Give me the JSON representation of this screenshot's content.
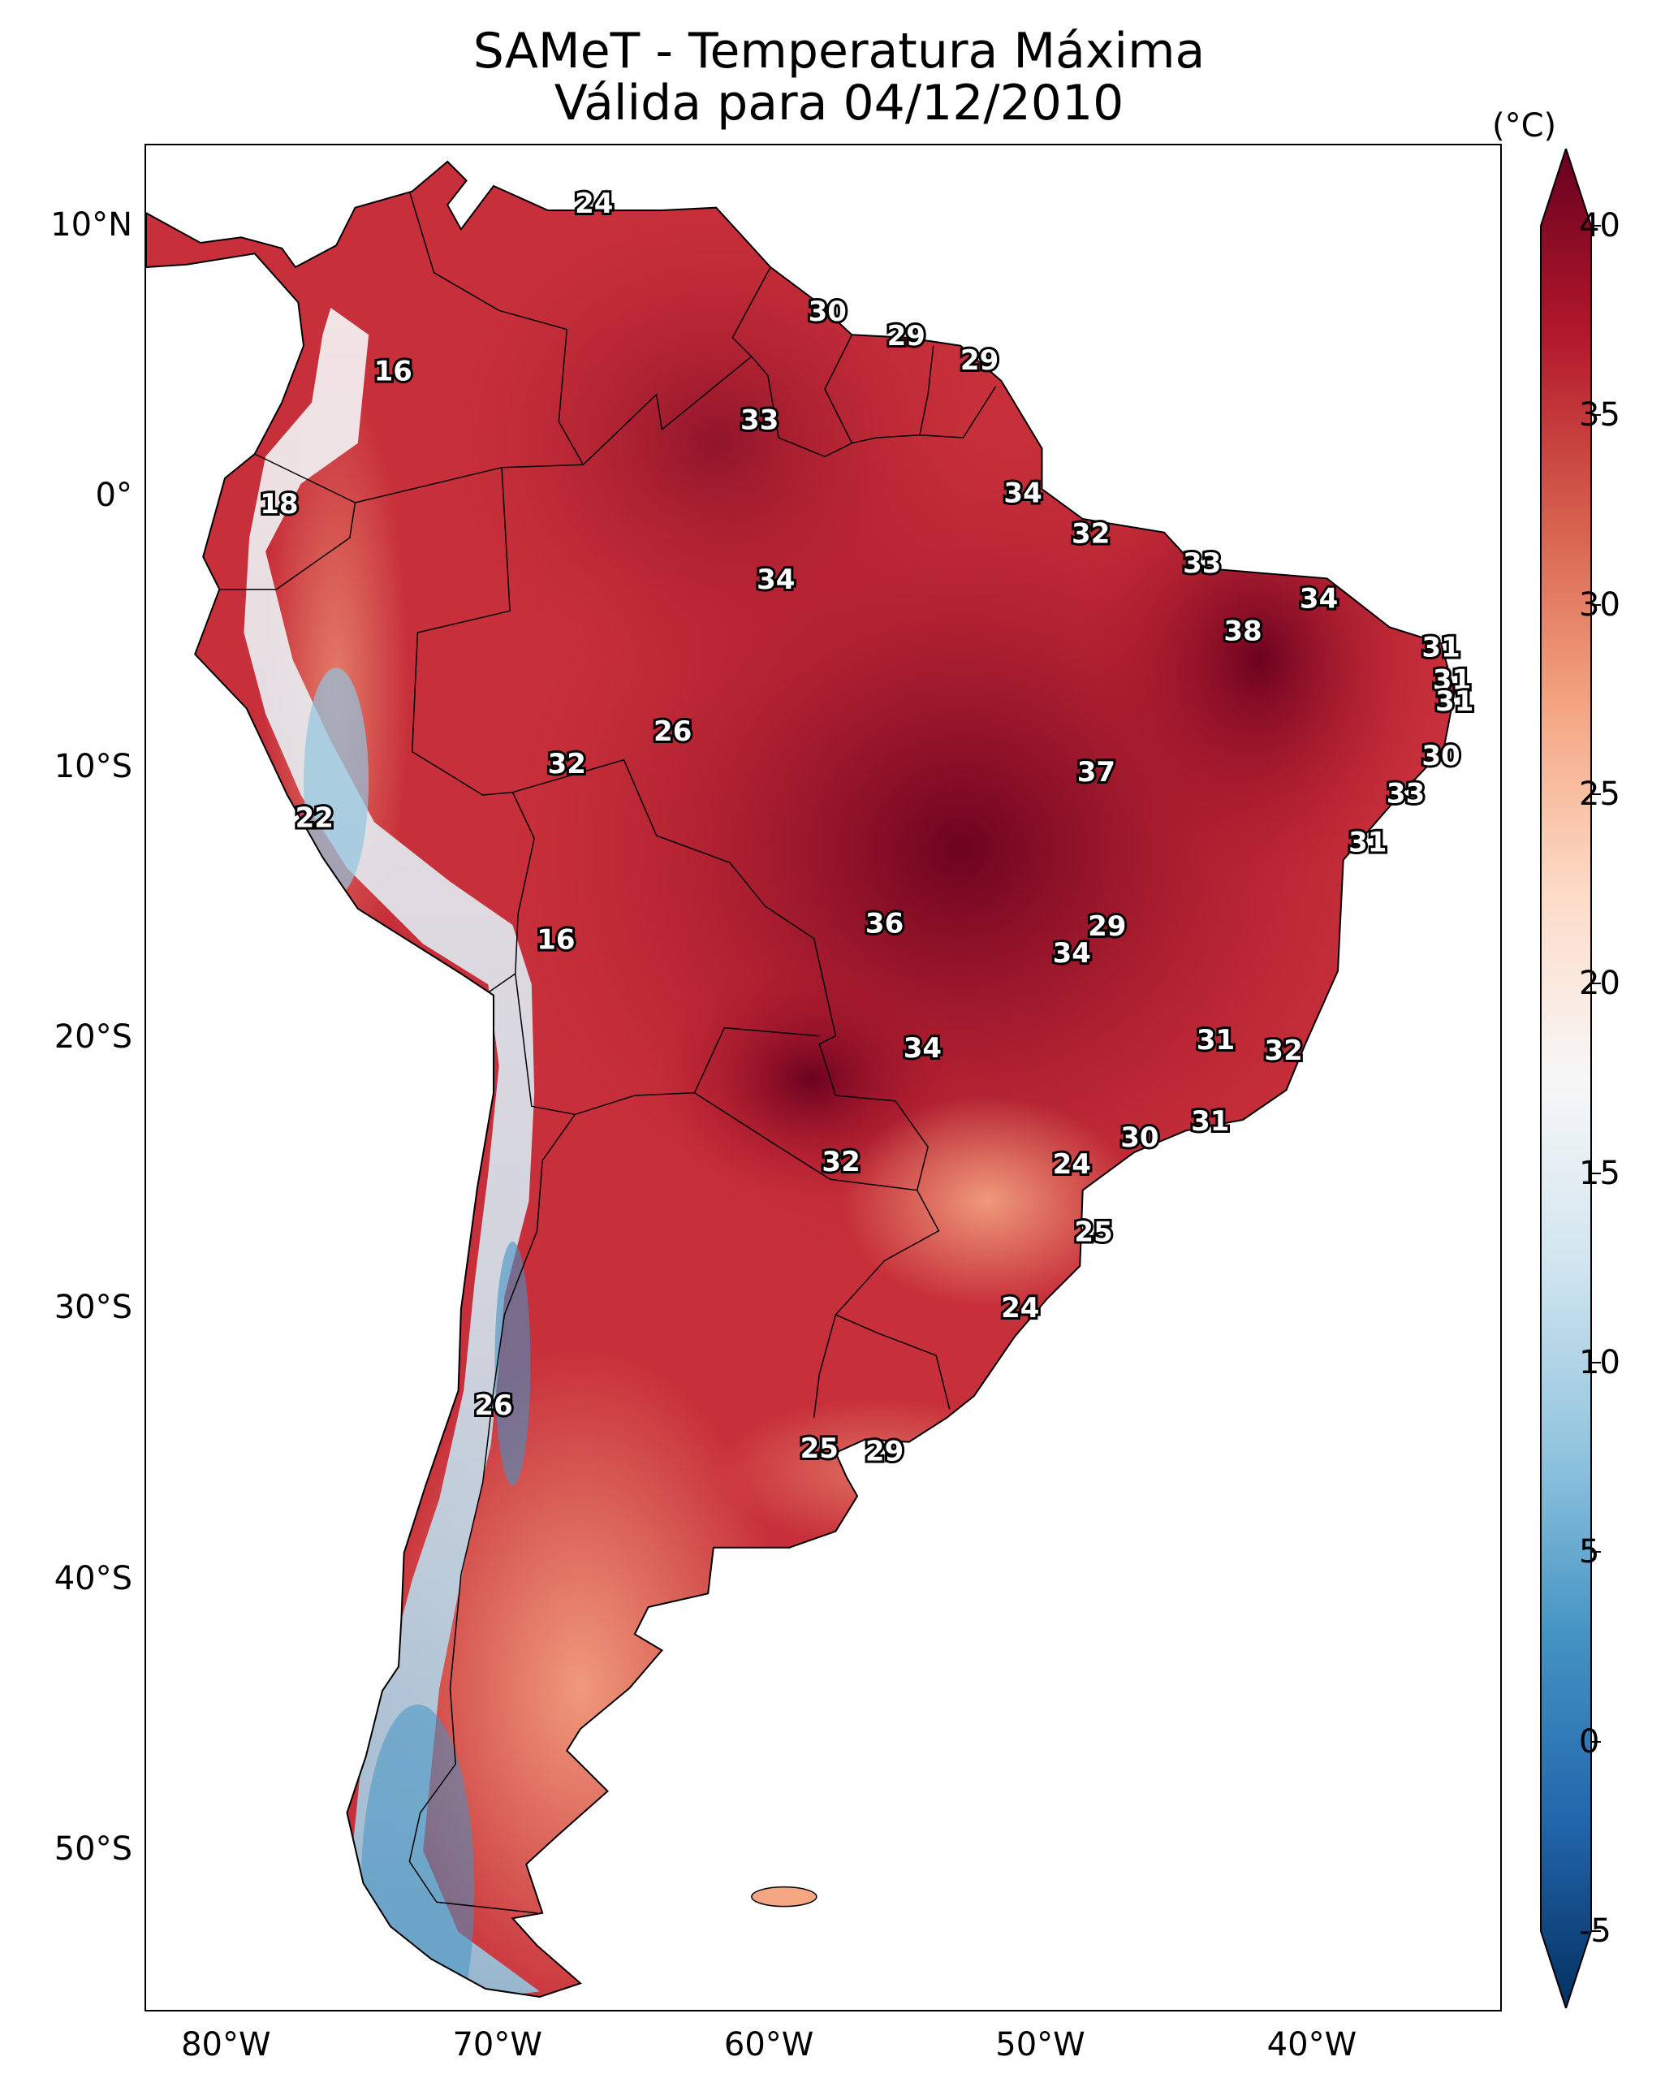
{
  "title": {
    "line1": "SAMeT - Temperatura Máxima",
    "line2": "Válida para 04/12/2010"
  },
  "map": {
    "lon_range": [
      -83,
      -33
    ],
    "lat_range": [
      -56,
      13
    ],
    "lat_ticks": [
      "10°N",
      "0°",
      "10°S",
      "20°S",
      "30°S",
      "40°S",
      "50°S"
    ],
    "lat_values": [
      10,
      0,
      -10,
      -20,
      -30,
      -40,
      -50
    ],
    "lon_ticks": [
      "80°W",
      "70°W",
      "60°W",
      "50°W",
      "40°W"
    ],
    "lon_values": [
      -80,
      -70,
      -60,
      -50,
      -40
    ]
  },
  "colorbar": {
    "unit": "(°C)",
    "ticks": [
      "40",
      "35",
      "30",
      "25",
      "20",
      "15",
      "10",
      "5",
      "0",
      "-5"
    ],
    "tick_values": [
      40,
      35,
      30,
      25,
      20,
      15,
      10,
      5,
      0,
      -5
    ],
    "range": [
      -5,
      40
    ],
    "colors": [
      "#053061",
      "#2166ac",
      "#4393c3",
      "#92c5de",
      "#d1e5f0",
      "#f7f7f7",
      "#fddbc7",
      "#f4a582",
      "#d6604d",
      "#b2182b",
      "#67001f"
    ]
  },
  "point_labels": [
    {
      "text": "24",
      "lon": -66.5,
      "lat": 10.8
    },
    {
      "text": "30",
      "lon": -57.9,
      "lat": 6.8
    },
    {
      "text": "29",
      "lon": -55.0,
      "lat": 5.9
    },
    {
      "text": "29",
      "lon": -52.3,
      "lat": 5.0
    },
    {
      "text": "16",
      "lon": -73.9,
      "lat": 4.6
    },
    {
      "text": "33",
      "lon": -60.4,
      "lat": 2.8
    },
    {
      "text": "34",
      "lon": -50.7,
      "lat": 0.1
    },
    {
      "text": "18",
      "lon": -78.1,
      "lat": -0.3
    },
    {
      "text": "32",
      "lon": -48.2,
      "lat": -1.4
    },
    {
      "text": "33",
      "lon": -44.1,
      "lat": -2.5
    },
    {
      "text": "34",
      "lon": -59.8,
      "lat": -3.1
    },
    {
      "text": "34",
      "lon": -39.8,
      "lat": -3.8
    },
    {
      "text": "38",
      "lon": -42.6,
      "lat": -5.0
    },
    {
      "text": "31",
      "lon": -35.3,
      "lat": -5.6
    },
    {
      "text": "31",
      "lon": -34.9,
      "lat": -6.8
    },
    {
      "text": "31",
      "lon": -34.8,
      "lat": -7.6
    },
    {
      "text": "26",
      "lon": -63.6,
      "lat": -8.7
    },
    {
      "text": "30",
      "lon": -35.3,
      "lat": -9.6
    },
    {
      "text": "32",
      "lon": -67.5,
      "lat": -9.9
    },
    {
      "text": "37",
      "lon": -48.0,
      "lat": -10.2
    },
    {
      "text": "33",
      "lon": -36.6,
      "lat": -11.0
    },
    {
      "text": "22",
      "lon": -76.8,
      "lat": -11.9
    },
    {
      "text": "31",
      "lon": -38.0,
      "lat": -12.8
    },
    {
      "text": "36",
      "lon": -55.8,
      "lat": -15.8
    },
    {
      "text": "29",
      "lon": -47.6,
      "lat": -15.9
    },
    {
      "text": "16",
      "lon": -67.9,
      "lat": -16.4
    },
    {
      "text": "34",
      "lon": -48.9,
      "lat": -16.9
    },
    {
      "text": "31",
      "lon": -43.6,
      "lat": -20.1
    },
    {
      "text": "34",
      "lon": -54.4,
      "lat": -20.4
    },
    {
      "text": "32",
      "lon": -41.1,
      "lat": -20.5
    },
    {
      "text": "31",
      "lon": -43.8,
      "lat": -23.1
    },
    {
      "text": "30",
      "lon": -46.4,
      "lat": -23.7
    },
    {
      "text": "32",
      "lon": -57.4,
      "lat": -24.6
    },
    {
      "text": "24",
      "lon": -48.9,
      "lat": -24.7
    },
    {
      "text": "25",
      "lon": -48.1,
      "lat": -27.2
    },
    {
      "text": "24",
      "lon": -50.8,
      "lat": -30.0
    },
    {
      "text": "26",
      "lon": -70.2,
      "lat": -33.6
    },
    {
      "text": "25",
      "lon": -58.2,
      "lat": -35.2
    },
    {
      "text": "29",
      "lon": -55.8,
      "lat": -35.3
    }
  ]
}
